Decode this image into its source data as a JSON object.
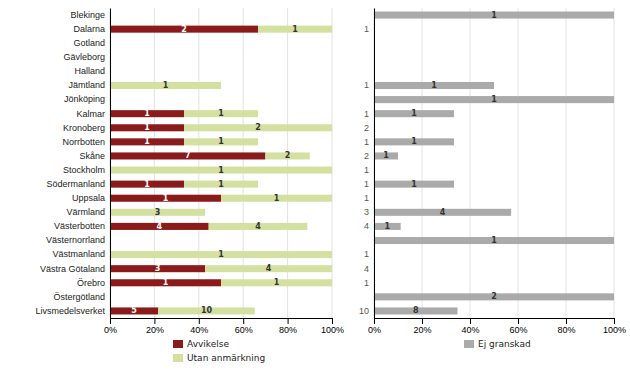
{
  "chart_data": [
    {
      "type": "bar",
      "orientation": "horizontal",
      "stacked": true,
      "grid": true,
      "legend": "bottom",
      "categories": [
        "Blekinge",
        "Dalarna",
        "Gotland",
        "Gävleborg",
        "Halland",
        "Jämtland",
        "Jönköping",
        "Kalmar",
        "Kronoberg",
        "Norrbotten",
        "Skåne",
        "Stockholm",
        "Södermanland",
        "Uppsala",
        "Värmland",
        "Västerbotten",
        "Västernorrland",
        "Västmanland",
        "Västra Götaland",
        "Örebro",
        "Östergötland",
        "Livsmedelsverket"
      ],
      "series": [
        {
          "name": "Avvikelse",
          "color": "#8B1A1A",
          "values": [
            0,
            66.66666666666666,
            0,
            0,
            0,
            0,
            0,
            33.33333333333333,
            33.33333333333333,
            33.33333333333333,
            70,
            0,
            33.33333333333333,
            50,
            0,
            44.44444444444444,
            0,
            0,
            42.857142857142854,
            50,
            0,
            21.73913043478261
          ],
          "counts": [
            0,
            2,
            0,
            0,
            0,
            0,
            0,
            1,
            1,
            1,
            7,
            0,
            1,
            1,
            0,
            4,
            0,
            0,
            3,
            1,
            0,
            5
          ]
        },
        {
          "name": "Utan anmärkning",
          "color": "#D4E0A0",
          "values": [
            0,
            33.33333333333333,
            0,
            0,
            0,
            50,
            0,
            33.33333333333333,
            66.66666666666666,
            33.33333333333333,
            20,
            100,
            33.33333333333333,
            50,
            42.857142857142854,
            44.44444444444444,
            0,
            100,
            57.14285714285714,
            50,
            0,
            43.47826086956522
          ],
          "counts": [
            0,
            1,
            0,
            0,
            0,
            1,
            0,
            1,
            2,
            1,
            2,
            1,
            1,
            1,
            3,
            4,
            0,
            1,
            4,
            1,
            0,
            10
          ]
        }
      ],
      "xlim": [
        0,
        100
      ],
      "xticks": [
        {
          "value": 0,
          "label": "0%"
        },
        {
          "value": 20,
          "label": "20%"
        },
        {
          "value": 40,
          "label": "40%"
        },
        {
          "value": 60,
          "label": "60%"
        },
        {
          "value": 80,
          "label": "80%"
        },
        {
          "value": 100,
          "label": "100%"
        }
      ]
    },
    {
      "type": "bar",
      "orientation": "horizontal",
      "grid": true,
      "legend": "bottom",
      "categories": [
        null,
        "1",
        null,
        null,
        null,
        "1",
        null,
        "1",
        "2",
        "1",
        "2",
        "1",
        "1",
        "1",
        "3",
        "4",
        null,
        "1",
        "4",
        "1",
        null,
        "10"
      ],
      "series": [
        {
          "name": "Ej granskad",
          "color": "#AAAAAA",
          "values": [
            100,
            0,
            0,
            0,
            0,
            50,
            100,
            33.33333333333333,
            0,
            33.33333333333333,
            10,
            0,
            33.33333333333333,
            0,
            57.14285714285714,
            11.11111111111111,
            100,
            0,
            0,
            0,
            100,
            34.78260869565217
          ],
          "counts": [
            1,
            0,
            0,
            0,
            0,
            1,
            1,
            1,
            0,
            1,
            1,
            0,
            1,
            0,
            4,
            1,
            1,
            0,
            0,
            0,
            2,
            8
          ]
        }
      ],
      "xlim": [
        0,
        100
      ],
      "xticks": [
        {
          "value": 0,
          "label": "0%"
        },
        {
          "value": 20,
          "label": "20%"
        },
        {
          "value": 40,
          "label": "40%"
        },
        {
          "value": 60,
          "label": "60%"
        },
        {
          "value": 80,
          "label": "80%"
        },
        {
          "value": 100,
          "label": "100%"
        }
      ]
    }
  ]
}
